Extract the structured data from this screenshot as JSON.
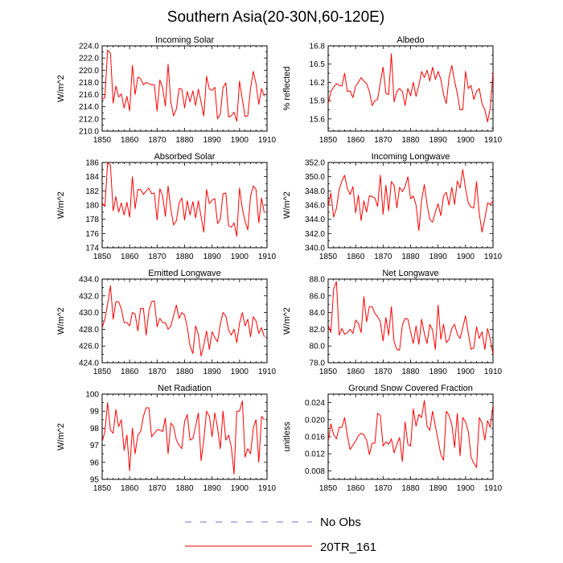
{
  "figure_title": "Southern Asia(20-30N,60-120E)",
  "legend": {
    "entries": [
      {
        "label": "No Obs",
        "color": "#6f6fd0",
        "style": "dashed"
      },
      {
        "label": "20TR_161",
        "color": "#ff0000",
        "style": "solid"
      }
    ]
  },
  "chart_data": [
    {
      "type": "line",
      "title": "Incoming Solar",
      "xlabel": "",
      "ylabel": "W/m^2",
      "xlim": [
        1850,
        1910
      ],
      "ylim": [
        210,
        224
      ],
      "xticks": [
        "1850",
        "1860",
        "1870",
        "1880",
        "1890",
        "1900",
        "1910"
      ],
      "yticks": [
        "210.0",
        "212.0",
        "214.0",
        "216.0",
        "218.0",
        "220.0",
        "222.0",
        "224.0"
      ],
      "x0": 1850,
      "series": [
        {
          "name": "20TR_161",
          "color": "#ff0000",
          "values": [
            215.3,
            215.5,
            223.3,
            222.8,
            214.6,
            217.4,
            215.6,
            216.1,
            213.8,
            215.7,
            213.3,
            220.8,
            216.0,
            218.9,
            218.6,
            217.6,
            218.0,
            217.8,
            217.6,
            217.6,
            213.3,
            218.4,
            217.1,
            214.1,
            221.0,
            214.8,
            212.5,
            213.6,
            217.0,
            216.9,
            213.8,
            216.5,
            214.8,
            216.6,
            214.2,
            216.9,
            214.8,
            212.5,
            219.0,
            216.9,
            216.7,
            217.2,
            212.0,
            212.8,
            217.2,
            217.9,
            212.3,
            212.5,
            213.1,
            211.6,
            218.2,
            215.2,
            212.4,
            212.5,
            217.0,
            219.8,
            217.8,
            214.4,
            217.0,
            215.7
          ]
        }
      ]
    },
    {
      "type": "line",
      "title": "Albedo",
      "xlabel": "",
      "ylabel": "% reflected",
      "xlim": [
        1850,
        1910
      ],
      "ylim": [
        15.4,
        16.8
      ],
      "xticks": [
        "1850",
        "1860",
        "1870",
        "1880",
        "1890",
        "1900",
        "1910"
      ],
      "yticks": [
        "15.6",
        "15.9",
        "16.2",
        "16.5",
        "16.8"
      ],
      "x0": 1850,
      "series": [
        {
          "name": "20TR_161",
          "color": "#ff0000",
          "values": [
            15.85,
            16.05,
            16.12,
            16.18,
            16.15,
            16.14,
            16.35,
            16.05,
            16.06,
            15.95,
            16.14,
            16.2,
            16.28,
            16.22,
            16.18,
            16.05,
            15.82,
            15.9,
            15.92,
            16.2,
            16.45,
            16.02,
            16.0,
            16.67,
            15.88,
            16.05,
            16.1,
            16.05,
            15.82,
            16.1,
            15.98,
            16.2,
            15.97,
            16.15,
            16.38,
            16.28,
            16.4,
            16.22,
            16.45,
            16.25,
            16.38,
            16.25,
            16.0,
            15.85,
            16.28,
            16.48,
            16.22,
            16.02,
            15.75,
            15.75,
            16.38,
            16.1,
            16.15,
            15.92,
            16.05,
            16.1,
            15.85,
            15.75,
            15.55,
            15.78,
            16.38,
            16.35,
            15.92,
            16.25,
            16.1,
            16.33
          ]
        }
      ]
    },
    {
      "type": "line",
      "title": "Absorbed Solar",
      "xlabel": "",
      "ylabel": "W/m^2",
      "xlim": [
        1850,
        1910
      ],
      "ylim": [
        174,
        186
      ],
      "xticks": [
        "1850",
        "1860",
        "1870",
        "1880",
        "1890",
        "1900",
        "1910"
      ],
      "yticks": [
        "174",
        "176",
        "178",
        "180",
        "182",
        "184",
        "186"
      ],
      "x0": 1850,
      "series": [
        {
          "name": "20TR_161",
          "color": "#ff0000",
          "values": [
            180.3,
            179.8,
            186.0,
            185.6,
            179.2,
            181.2,
            179.0,
            180.3,
            178.6,
            180.4,
            178.3,
            184.0,
            179.5,
            182.2,
            182.2,
            181.5,
            182.0,
            182.4,
            181.6,
            181.7,
            177.9,
            182.3,
            181.3,
            178.4,
            182.7,
            179.4,
            177.2,
            177.8,
            180.3,
            181.0,
            177.9,
            180.6,
            178.6,
            180.5,
            178.2,
            180.6,
            178.4,
            176.2,
            182.2,
            180.2,
            180.7,
            180.9,
            177.4,
            178.0,
            181.6,
            181.7,
            177.1,
            176.9,
            177.5,
            175.6,
            182.4,
            179.5,
            177.7,
            176.5,
            181.2,
            182.7,
            182.2,
            177.5,
            181.0,
            178.9
          ]
        }
      ]
    },
    {
      "type": "line",
      "title": "Incoming Longwave",
      "xlabel": "",
      "ylabel": "W/m^2",
      "xlim": [
        1850,
        1910
      ],
      "ylim": [
        340,
        352
      ],
      "xticks": [
        "1850",
        "1860",
        "1870",
        "1880",
        "1890",
        "1900",
        "1910"
      ],
      "yticks": [
        "340.0",
        "342.0",
        "344.0",
        "346.0",
        "348.0",
        "350.0",
        "352.0"
      ],
      "x0": 1850,
      "series": [
        {
          "name": "20TR_161",
          "color": "#ff0000",
          "values": [
            345.8,
            347.7,
            344.3,
            345.5,
            348.2,
            349.4,
            350.2,
            348.3,
            347.5,
            348.6,
            344.9,
            347.4,
            343.8,
            346.6,
            345.0,
            347.3,
            347.2,
            347.0,
            345.8,
            350.2,
            344.7,
            348.8,
            345.2,
            349.3,
            348.8,
            345.6,
            348.5,
            347.9,
            348.6,
            350.0,
            346.9,
            347.3,
            346.0,
            342.4,
            346.7,
            348.9,
            346.1,
            344.0,
            343.6,
            345.0,
            346.2,
            344.5,
            347.3,
            347.8,
            346.0,
            348.5,
            346.1,
            349.4,
            348.4,
            351.0,
            348.3,
            346.3,
            345.7,
            345.6,
            349.3,
            344.8,
            342.2,
            344.1,
            346.3,
            346.1,
            346.6,
            346.6
          ]
        }
      ]
    },
    {
      "type": "line",
      "title": "Emitted Longwave",
      "xlabel": "",
      "ylabel": "W/m^2",
      "xlim": [
        1850,
        1910
      ],
      "ylim": [
        424,
        434
      ],
      "xticks": [
        "1850",
        "1860",
        "1870",
        "1880",
        "1890",
        "1900",
        "1910"
      ],
      "yticks": [
        "424.0",
        "426.0",
        "428.0",
        "430.0",
        "432.0",
        "434.0"
      ],
      "x0": 1850,
      "series": [
        {
          "name": "20TR_161",
          "color": "#ff0000",
          "values": [
            428.2,
            429.2,
            431.0,
            433.2,
            429.2,
            431.3,
            431.3,
            430.4,
            428.8,
            428.8,
            428.4,
            430.0,
            429.8,
            427.8,
            430.5,
            430.5,
            427.3,
            430.2,
            431.3,
            431.4,
            428.3,
            429.3,
            428.8,
            428.8,
            428.0,
            428.4,
            429.6,
            430.9,
            429.3,
            430.0,
            429.7,
            428.2,
            426.0,
            425.1,
            428.4,
            427.4,
            424.8,
            426.1,
            427.8,
            425.6,
            427.7,
            427.0,
            426.5,
            428.6,
            430.0,
            429.6,
            427.9,
            427.3,
            428.0,
            426.4,
            428.7,
            430.0,
            428.4,
            429.2,
            427.1,
            429.5,
            429.0,
            427.5,
            428.2,
            427.1
          ]
        }
      ]
    },
    {
      "type": "line",
      "title": "Net Longwave",
      "xlabel": "",
      "ylabel": "W/m^2",
      "xlim": [
        1850,
        1910
      ],
      "ylim": [
        78,
        88
      ],
      "xticks": [
        "1850",
        "1860",
        "1870",
        "1880",
        "1890",
        "1900",
        "1910"
      ],
      "yticks": [
        "78.0",
        "80.0",
        "82.0",
        "84.0",
        "86.0",
        "88.0"
      ],
      "x0": 1850,
      "series": [
        {
          "name": "20TR_161",
          "color": "#ff0000",
          "values": [
            82.5,
            81.6,
            86.8,
            87.7,
            81.3,
            82.1,
            81.4,
            81.6,
            82.0,
            81.5,
            83.1,
            82.7,
            81.6,
            85.9,
            82.9,
            84.7,
            84.7,
            83.9,
            83.5,
            82.9,
            80.6,
            83.4,
            81.3,
            84.7,
            80.5,
            79.6,
            79.5,
            82.5,
            83.3,
            83.2,
            81.7,
            80.3,
            82.4,
            80.2,
            83.2,
            81.5,
            80.3,
            82.6,
            81.9,
            79.6,
            84.9,
            80.8,
            82.6,
            80.4,
            80.8,
            82.1,
            82.6,
            81.4,
            80.9,
            82.2,
            83.6,
            81.5,
            79.6,
            79.8,
            82.3,
            80.9,
            81.7,
            79.6,
            82.1,
            80.8,
            79.0,
            80.7,
            83.1,
            85.6,
            83.7,
            81.5,
            83.0,
            80.5
          ]
        }
      ]
    },
    {
      "type": "line",
      "title": "Net Radiation",
      "xlabel": "",
      "ylabel": "W/m^2",
      "xlim": [
        1850,
        1910
      ],
      "ylim": [
        95,
        100
      ],
      "xticks": [
        "1850",
        "1860",
        "1870",
        "1880",
        "1890",
        "1900",
        "1910"
      ],
      "yticks": [
        "95",
        "96",
        "97",
        "98",
        "99",
        "100"
      ],
      "x0": 1850,
      "series": [
        {
          "name": "20TR_161",
          "color": "#ff0000",
          "values": [
            97.2,
            97.8,
            99.5,
            97.9,
            97.7,
            99.1,
            98.1,
            98.5,
            96.7,
            97.6,
            95.5,
            98.0,
            96.5,
            97.6,
            97.8,
            98.7,
            99.2,
            99.2,
            97.5,
            97.7,
            97.9,
            97.9,
            97.8,
            98.6,
            96.5,
            98.3,
            98.1,
            97.3,
            97.0,
            96.8,
            98.4,
            98.8,
            97.3,
            97.4,
            98.1,
            98.9,
            96.1,
            97.3,
            99.0,
            98.7,
            97.5,
            98.9,
            98.0,
            96.8,
            99.0,
            97.3,
            97.6,
            96.9,
            95.3,
            99.0,
            99.0,
            99.6,
            96.3,
            96.8,
            96.5,
            98.0,
            98.5,
            96.0,
            98.7,
            98.5
          ]
        }
      ]
    },
    {
      "type": "line",
      "title": "Ground Snow Covered Fraction",
      "xlabel": "",
      "ylabel": "unitless",
      "xlim": [
        1850,
        1910
      ],
      "ylim": [
        0.006,
        0.026
      ],
      "xticks": [
        "1850",
        "1860",
        "1870",
        "1880",
        "1890",
        "1900",
        "1910"
      ],
      "yticks": [
        "0.008",
        "0.012",
        "0.016",
        "0.020",
        "0.024"
      ],
      "x0": 1850,
      "series": [
        {
          "name": "20TR_161",
          "color": "#ff0000",
          "values": [
            0.0148,
            0.019,
            0.0165,
            0.0155,
            0.0182,
            0.0182,
            0.0205,
            0.0162,
            0.013,
            0.014,
            0.015,
            0.0162,
            0.0168,
            0.0165,
            0.0152,
            0.0118,
            0.0145,
            0.0145,
            0.0215,
            0.021,
            0.0138,
            0.0148,
            0.0142,
            0.0155,
            0.0122,
            0.0142,
            0.0158,
            0.0102,
            0.0195,
            0.0142,
            0.0138,
            0.0225,
            0.0185,
            0.0212,
            0.0205,
            0.0245,
            0.0185,
            0.0175,
            0.022,
            0.0185,
            0.0152,
            0.0118,
            0.0105,
            0.022,
            0.021,
            0.0188,
            0.0135,
            0.0215,
            0.0115,
            0.0205,
            0.0195,
            0.0172,
            0.0112,
            0.0098,
            0.0088,
            0.0205,
            0.0192,
            0.0152,
            0.0198,
            0.0182,
            0.0235
          ]
        }
      ]
    }
  ]
}
